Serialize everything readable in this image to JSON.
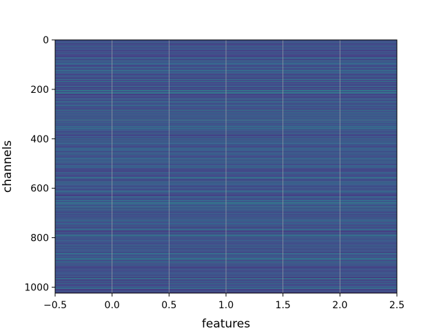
{
  "chart_data": {
    "type": "heatmap",
    "title": "",
    "xlabel": "features",
    "ylabel": "channels",
    "xlim": [
      -0.5,
      2.5
    ],
    "ylim": [
      1024,
      0
    ],
    "y_axis_inverted": true,
    "grid": true,
    "colormap": "viridis",
    "columns": [
      0,
      1,
      2
    ],
    "rows": 1024,
    "x_ticks": [
      -0.5,
      0.0,
      0.5,
      1.0,
      1.5,
      2.0,
      2.5
    ],
    "x_tick_labels": [
      "−0.5",
      "0.0",
      "0.5",
      "1.0",
      "1.5",
      "2.0",
      "2.5"
    ],
    "y_ticks": [
      0,
      200,
      400,
      600,
      800,
      1000
    ],
    "y_tick_labels": [
      "0",
      "200",
      "400",
      "600",
      "800",
      "1000"
    ],
    "colors": {
      "viridis_low": "#440154",
      "viridis_mid": "#21918c",
      "viridis_high": "#fde725",
      "grid": "#b0b0b0"
    }
  }
}
